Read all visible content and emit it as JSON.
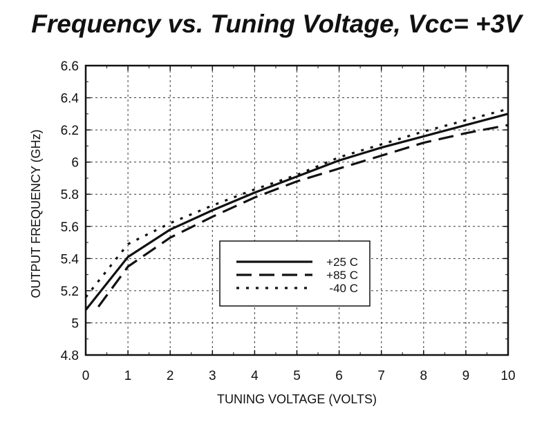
{
  "chart_data": {
    "type": "line",
    "title": "Frequency vs. Tuning Voltage, Vcc= +3V",
    "xlabel": "TUNING VOLTAGE (VOLTS)",
    "ylabel": "OUTPUT FREQUENCY (GHz)",
    "xlim": [
      0,
      10
    ],
    "ylim": [
      4.8,
      6.6
    ],
    "x_ticks": [
      0,
      1,
      2,
      3,
      4,
      5,
      6,
      7,
      8,
      9,
      10
    ],
    "x_tick_labels": [
      "0",
      "1",
      "2",
      "3",
      "4",
      "5",
      "6",
      "7",
      "8",
      "9",
      "10"
    ],
    "y_ticks": [
      4.8,
      5,
      5.2,
      5.4,
      5.6,
      5.8,
      6,
      6.2,
      6.4,
      6.6
    ],
    "y_tick_labels": [
      "4.8",
      "5",
      "5.2",
      "5.4",
      "5.6",
      "5.8",
      "6",
      "6.2",
      "6.4",
      "6.6"
    ],
    "grid": true,
    "legend_position": "center",
    "series": [
      {
        "name": "+25 C",
        "style": "solid",
        "x": [
          0,
          1,
          2,
          3,
          4,
          5,
          6,
          7,
          8,
          9,
          10
        ],
        "values": [
          5.08,
          5.41,
          5.58,
          5.7,
          5.81,
          5.91,
          6.01,
          6.09,
          6.16,
          6.23,
          6.3
        ]
      },
      {
        "name": "+85 C",
        "style": "dashed",
        "x": [
          0.3,
          1,
          2,
          3,
          4,
          5,
          6,
          7,
          8,
          9,
          10
        ],
        "values": [
          5.1,
          5.35,
          5.53,
          5.66,
          5.78,
          5.88,
          5.96,
          6.04,
          6.12,
          6.18,
          6.23
        ]
      },
      {
        "name": "-40 C",
        "style": "dotted",
        "x": [
          0,
          1,
          2,
          3,
          4,
          5,
          6,
          7,
          8,
          9,
          10
        ],
        "values": [
          5.16,
          5.49,
          5.62,
          5.73,
          5.83,
          5.92,
          6.03,
          6.11,
          6.19,
          6.26,
          6.33
        ]
      }
    ]
  }
}
